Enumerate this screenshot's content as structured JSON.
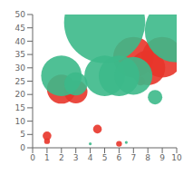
{
  "chart_data": {
    "type": "scatter",
    "xlim": [
      0,
      10
    ],
    "ylim": [
      0,
      50
    ],
    "xticks": [
      0,
      1,
      2,
      3,
      4,
      5,
      6,
      7,
      8,
      9,
      10
    ],
    "yticks": [
      0,
      5,
      10,
      15,
      20,
      25,
      30,
      35,
      40,
      45,
      50
    ],
    "grid": false,
    "series": [
      {
        "color": "#e8352a",
        "x": [
          1.0,
          1.0,
          2.0,
          3.0,
          4.5,
          7.0,
          8.0,
          9.0,
          7.5,
          6.0
        ],
        "values": [
          4.5,
          2.5,
          22,
          21,
          7,
          34,
          30,
          34,
          25,
          1.5
        ],
        "size": [
          3,
          2,
          10,
          8,
          3,
          14,
          12,
          14,
          3,
          2
        ]
      },
      {
        "color": "#3cb98a",
        "x": [
          2.0,
          3.0,
          5.0,
          6.0,
          7.0,
          8.5,
          5.0,
          10.0,
          4.0,
          6.5
        ],
        "values": [
          27,
          24,
          27,
          27,
          27,
          19,
          47,
          44,
          1.5,
          2.0
        ],
        "size": [
          14,
          8,
          14,
          14,
          13,
          5,
          28,
          22,
          1,
          1
        ]
      }
    ]
  }
}
